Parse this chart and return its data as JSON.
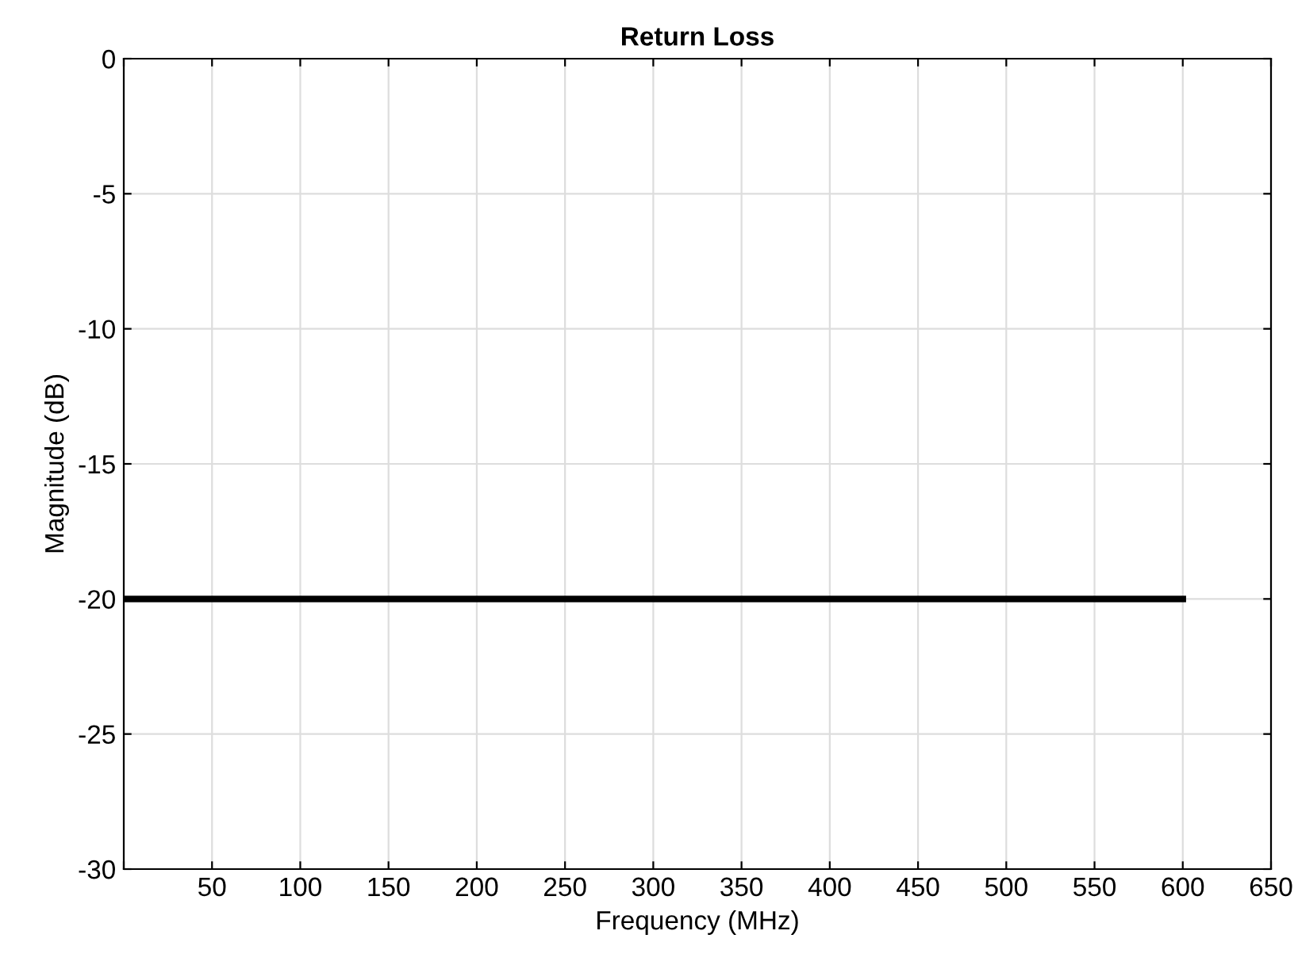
{
  "chart_data": {
    "type": "line",
    "title": "Return Loss",
    "xlabel": "Frequency (MHz)",
    "ylabel": "Magnitude (dB)",
    "x": [
      0,
      600
    ],
    "series": [
      {
        "color": "#000000",
        "values": [
          -20,
          -20
        ]
      }
    ],
    "xlim": [
      0,
      650
    ],
    "xticks": [
      {
        "value": 0,
        "label": null
      },
      50,
      100,
      150,
      200,
      250,
      300,
      350,
      400,
      450,
      500,
      550,
      600,
      650
    ],
    "ylim": [
      -30,
      0
    ],
    "yticks": [
      -30,
      -25,
      -20,
      -15,
      -10,
      -5,
      0
    ],
    "grid": true,
    "marker": "none",
    "line_style": "solid"
  }
}
